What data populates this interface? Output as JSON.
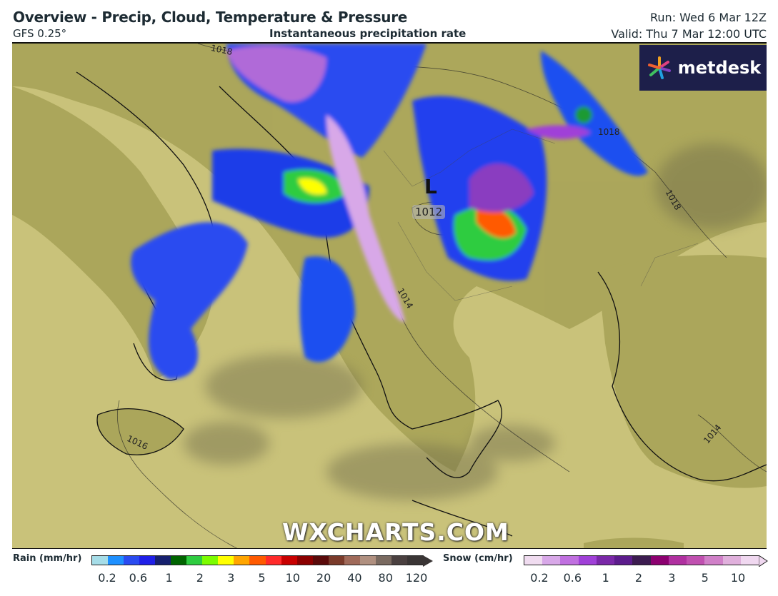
{
  "header": {
    "title": "Overview - Precip, Cloud, Temperature & Pressure",
    "model": "GFS 0.25°",
    "subtitle": "Instantaneous precipitation rate",
    "run": "Run: Wed 6 Mar 12Z",
    "valid": "Valid: Thu 7 Mar 12:00 UTC"
  },
  "logo": {
    "text": "metdesk"
  },
  "watermark": "WXCHARTS.COM",
  "map": {
    "low_symbol": "L",
    "low_pressure": "1012",
    "isobar_labels": [
      "1018",
      "1018",
      "1018",
      "1014",
      "1014",
      "1016",
      "1014",
      "1016"
    ]
  },
  "legend": {
    "rain": {
      "label": "Rain (mm/hr)",
      "ticks": [
        "0.2",
        "0.6",
        "1",
        "2",
        "3",
        "5",
        "10",
        "20",
        "40",
        "80",
        "120"
      ],
      "colors": [
        "#a6dde8",
        "#1e90ff",
        "#2a4bf0",
        "#1f1fe8",
        "#16206e",
        "#006400",
        "#2ecc40",
        "#7cfc00",
        "#ffff00",
        "#ffa500",
        "#ff5a00",
        "#ff2a2a",
        "#c80000",
        "#8b0000",
        "#5a0a0a",
        "#7a3a2a",
        "#a06a5a",
        "#b09080",
        "#7a6a60",
        "#4a4040",
        "#3a3535"
      ]
    },
    "snow": {
      "label": "Snow (cm/hr)",
      "ticks": [
        "0.2",
        "0.6",
        "1",
        "2",
        "3",
        "5",
        "10"
      ],
      "colors": [
        "#f0dcf0",
        "#d8a8e8",
        "#c070e0",
        "#a040d8",
        "#7a28a8",
        "#5c1c8c",
        "#3c1c50",
        "#8c0070",
        "#b030a0",
        "#c050b0",
        "#d080c8",
        "#e0b0dc",
        "#f0d8f0"
      ]
    }
  }
}
